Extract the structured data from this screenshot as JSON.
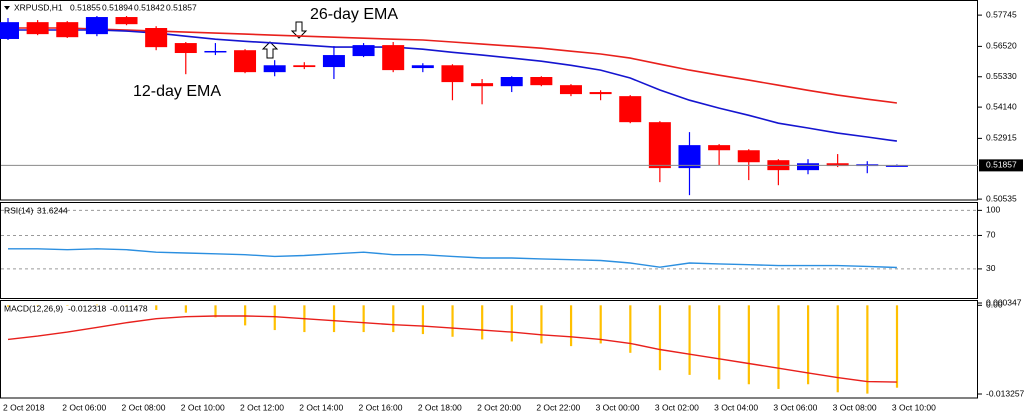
{
  "chart_data": [
    {
      "type": "candlestick",
      "title": "XRPUSD,H1",
      "categories": [
        "2 Oct 2018",
        null,
        "2 Oct 06:00",
        null,
        "2 Oct 08:00",
        null,
        "2 Oct 10:00",
        null,
        "2 Oct 12:00",
        null,
        "2 Oct 14:00",
        null,
        "2 Oct 16:00",
        null,
        "2 Oct 18:00",
        null,
        "2 Oct 20:00",
        null,
        "2 Oct 22:00",
        null,
        "3 Oct 00:00",
        null,
        "3 Oct 02:00",
        null,
        "3 Oct 04:00",
        null,
        "3 Oct 06:00",
        null,
        "3 Oct 08:00",
        null,
        "3 Oct 10:00"
      ],
      "ohlc": {
        "open": [
          0.5681,
          0.5747,
          0.5747,
          0.57,
          0.5767,
          0.5724,
          0.5665,
          0.563,
          0.5637,
          0.5551,
          0.5578,
          0.5571,
          0.5614,
          0.5657,
          0.5567,
          0.5578,
          0.5508,
          0.5496,
          0.5532,
          0.55,
          0.5473,
          0.5457,
          0.5355,
          0.5175,
          0.5265,
          0.5245,
          0.5206,
          0.5167,
          0.5194,
          0.5183,
          0.51855
        ],
        "high": [
          0.5763,
          0.5755,
          0.5751,
          0.5771,
          0.5771,
          0.5731,
          0.5669,
          0.5665,
          0.5641,
          0.5598,
          0.559,
          0.5653,
          0.5665,
          0.5669,
          0.5586,
          0.5582,
          0.5524,
          0.5535,
          0.5535,
          0.5504,
          0.548,
          0.5461,
          0.5359,
          0.5316,
          0.5269,
          0.5249,
          0.521,
          0.521,
          0.523,
          0.5202,
          0.51894
        ],
        "low": [
          0.5677,
          0.5696,
          0.5685,
          0.5692,
          0.5735,
          0.5637,
          0.5543,
          0.5618,
          0.5547,
          0.5535,
          0.5563,
          0.5524,
          0.561,
          0.5551,
          0.5551,
          0.5441,
          0.5425,
          0.5473,
          0.5496,
          0.5457,
          0.5441,
          0.5351,
          0.512,
          0.5069,
          0.5187,
          0.5128,
          0.5108,
          0.5151,
          0.5179,
          0.5155,
          0.51842
        ],
        "close": [
          0.5747,
          0.57,
          0.5688,
          0.5767,
          0.5739,
          0.5649,
          0.5626,
          0.5634,
          0.5551,
          0.5578,
          0.5571,
          0.5618,
          0.5657,
          0.5559,
          0.5578,
          0.5512,
          0.5496,
          0.5532,
          0.55,
          0.5465,
          0.5465,
          0.5355,
          0.5175,
          0.5265,
          0.5245,
          0.5198,
          0.5167,
          0.5194,
          0.5183,
          0.519,
          0.51857
        ]
      },
      "up_color": "#0000ff",
      "down_color": "#ff0000",
      "series": [
        {
          "name": "26-day EMA",
          "color": "#e8201c",
          "values": [
            0.5724,
            0.5724,
            0.5724,
            0.572,
            0.5716,
            0.5712,
            0.5708,
            0.5704,
            0.57,
            0.5696,
            0.5692,
            0.5688,
            0.5684,
            0.568,
            0.5677,
            0.5669,
            0.5661,
            0.5653,
            0.5645,
            0.5633,
            0.5622,
            0.5606,
            0.5582,
            0.5559,
            0.5539,
            0.552,
            0.55,
            0.548,
            0.5461,
            0.5445,
            0.543
          ]
        },
        {
          "name": "12-day EMA",
          "color": "#1515d0",
          "values": [
            0.5716,
            0.5716,
            0.5716,
            0.5716,
            0.5712,
            0.5704,
            0.5692,
            0.568,
            0.5672,
            0.5665,
            0.5657,
            0.5649,
            0.5649,
            0.5649,
            0.5641,
            0.5629,
            0.5618,
            0.5606,
            0.5594,
            0.5578,
            0.5559,
            0.5528,
            0.5481,
            0.5441,
            0.541,
            0.5382,
            0.5351,
            0.5332,
            0.5312,
            0.5297,
            0.5281
          ]
        }
      ],
      "ylim": [
        0.505,
        0.5822
      ],
      "yticks": [
        0.57745,
        {
          "value": 0.5652,
          "label": "0.56520"
        },
        {
          "value": 0.5533,
          "label": "0.55330"
        },
        {
          "value": 0.5414,
          "label": "0.54140"
        },
        0.52915,
        0.50535
      ]
    },
    {
      "type": "line",
      "title": "RSI(14)",
      "series": [
        {
          "color": "#2b8fe0",
          "values": [
            54,
            54,
            53,
            54,
            53,
            50,
            49,
            48,
            47,
            45,
            46,
            48,
            50,
            47,
            47,
            45,
            43,
            43,
            42,
            41,
            40,
            37,
            32,
            37,
            36,
            35,
            34,
            34,
            34,
            33,
            31.6244
          ]
        }
      ],
      "ylim": [
        -6,
        110
      ],
      "yticks": [
        100,
        70,
        30
      ],
      "grid": "dashed"
    },
    {
      "type": "macd",
      "title": "MACD(12,26,9)",
      "series": [
        {
          "type": "bar",
          "color": "#ffc000",
          "values": [
            -0.0002,
            -0.0001,
            0,
            0.0001,
            0,
            -0.0007,
            -0.0011,
            -0.0018,
            -0.003,
            -0.0037,
            -0.004,
            -0.004,
            -0.004,
            -0.004,
            -0.0043,
            -0.0047,
            -0.0051,
            -0.0054,
            -0.0057,
            -0.0061,
            -0.0057,
            -0.0071,
            -0.0097,
            -0.0104,
            -0.0111,
            -0.0118,
            -0.0125,
            -0.0118,
            -0.013,
            -0.0132,
            -0.012318
          ]
        },
        {
          "type": "line",
          "color": "#e8201c",
          "values": [
            -0.0051,
            -0.0046,
            -0.004,
            -0.0033,
            -0.0026,
            -0.002,
            -0.0017,
            -0.0016,
            -0.0016,
            -0.0017,
            -0.002,
            -0.0023,
            -0.0026,
            -0.0029,
            -0.0031,
            -0.0034,
            -0.0037,
            -0.004,
            -0.0044,
            -0.0047,
            -0.0051,
            -0.0057,
            -0.0066,
            -0.0073,
            -0.008,
            -0.0087,
            -0.0094,
            -0.0101,
            -0.0108,
            -0.0114,
            -0.011478
          ]
        }
      ],
      "ylim": [
        -0.013257,
        0.000347
      ],
      "yticks": [
        {
          "value": 0,
          "label": "0.00"
        },
        0.000347,
        -0.013257
      ]
    }
  ]
}
